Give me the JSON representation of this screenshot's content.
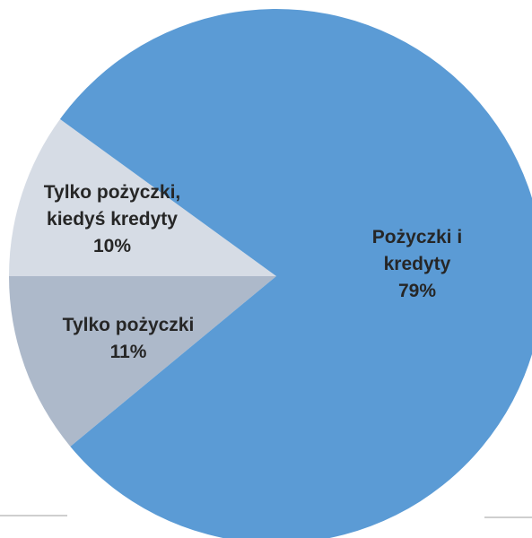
{
  "chart_data": {
    "type": "pie",
    "categories": [
      "Pożyczki i\nkredyty",
      "Tylko pożyczki",
      "Tylko pożyczki,\nkiedyś kredyty"
    ],
    "values": [
      79,
      11,
      10
    ],
    "value_labels": [
      "79%",
      "11%",
      "10%"
    ],
    "colors": [
      "#5b9bd5",
      "#adb9ca",
      "#d6dce5"
    ]
  }
}
